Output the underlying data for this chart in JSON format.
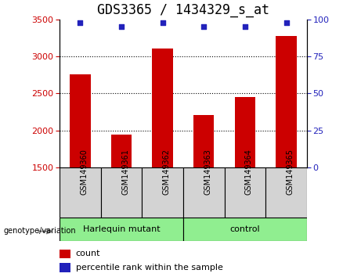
{
  "title": "GDS3365 / 1434329_s_at",
  "samples": [
    "GSM149360",
    "GSM149361",
    "GSM149362",
    "GSM149363",
    "GSM149364",
    "GSM149365"
  ],
  "counts": [
    2760,
    1950,
    3105,
    2210,
    2450,
    3280
  ],
  "percentiles": [
    98,
    95,
    98,
    95,
    95,
    98
  ],
  "ylim_left": [
    1500,
    3500
  ],
  "ylim_right": [
    0,
    100
  ],
  "yticks_left": [
    1500,
    2000,
    2500,
    3000,
    3500
  ],
  "yticks_right": [
    0,
    25,
    50,
    75,
    100
  ],
  "bar_color": "#cc0000",
  "dot_color": "#2222bb",
  "group1_label": "Harlequin mutant",
  "group2_label": "control",
  "group_bg_color": "#90ee90",
  "sample_box_color": "#d3d3d3",
  "legend_count_label": "count",
  "legend_percentile_label": "percentile rank within the sample",
  "genotype_label": "genotype/variation",
  "title_fontsize": 12,
  "tick_fontsize": 8,
  "label_fontsize": 8,
  "dotted_lines": [
    2000,
    2500,
    3000
  ]
}
